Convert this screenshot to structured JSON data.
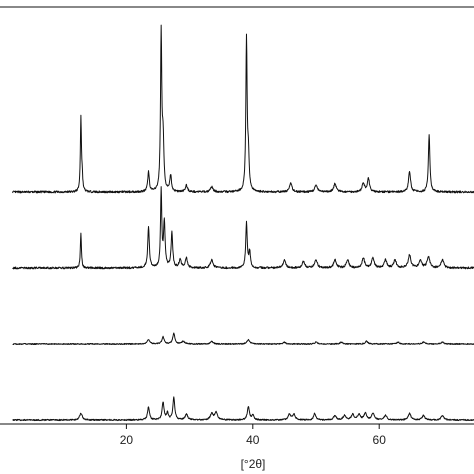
{
  "chart_data": {
    "type": "line",
    "title": "",
    "xlabel": "[°2θ]",
    "ylabel": "",
    "xlim": [
      0,
      75
    ],
    "x_ticks": [
      20,
      40,
      60
    ],
    "x_tick_labels": [
      "20",
      "40",
      "60"
    ],
    "grid": false,
    "legend": "none",
    "line_color": "#111111",
    "series": [
      {
        "background": 0.05,
        "peaks": [
          {
            "x": 12.8,
            "h": 0.45,
            "w": 0.1
          },
          {
            "x": 13.0,
            "h": 0.08,
            "w": 0.1
          },
          {
            "x": 23.5,
            "h": 0.12,
            "w": 0.15
          },
          {
            "x": 25.5,
            "h": 0.95,
            "w": 0.12
          },
          {
            "x": 25.8,
            "h": 0.3,
            "w": 0.15
          },
          {
            "x": 27.0,
            "h": 0.1,
            "w": 0.15
          },
          {
            "x": 29.5,
            "h": 0.04,
            "w": 0.2
          },
          {
            "x": 33.5,
            "h": 0.03,
            "w": 0.25
          },
          {
            "x": 39.0,
            "h": 0.92,
            "w": 0.12
          },
          {
            "x": 39.3,
            "h": 0.2,
            "w": 0.15
          },
          {
            "x": 46.0,
            "h": 0.05,
            "w": 0.25
          },
          {
            "x": 50.0,
            "h": 0.04,
            "w": 0.25
          },
          {
            "x": 53.0,
            "h": 0.05,
            "w": 0.25
          },
          {
            "x": 57.5,
            "h": 0.05,
            "w": 0.25
          },
          {
            "x": 58.3,
            "h": 0.08,
            "w": 0.2
          },
          {
            "x": 64.8,
            "h": 0.12,
            "w": 0.2
          },
          {
            "x": 67.9,
            "h": 0.35,
            "w": 0.14
          }
        ]
      },
      {
        "background": 0.06,
        "peaks": [
          {
            "x": 12.8,
            "h": 0.22,
            "w": 0.1
          },
          {
            "x": 23.5,
            "h": 0.25,
            "w": 0.15
          },
          {
            "x": 25.5,
            "h": 0.48,
            "w": 0.12
          },
          {
            "x": 26.0,
            "h": 0.28,
            "w": 0.15
          },
          {
            "x": 27.2,
            "h": 0.22,
            "w": 0.15
          },
          {
            "x": 28.5,
            "h": 0.05,
            "w": 0.2
          },
          {
            "x": 29.5,
            "h": 0.06,
            "w": 0.2
          },
          {
            "x": 33.5,
            "h": 0.05,
            "w": 0.25
          },
          {
            "x": 39.0,
            "h": 0.28,
            "w": 0.14
          },
          {
            "x": 39.5,
            "h": 0.1,
            "w": 0.15
          },
          {
            "x": 45.0,
            "h": 0.05,
            "w": 0.25
          },
          {
            "x": 48.0,
            "h": 0.04,
            "w": 0.25
          },
          {
            "x": 50.0,
            "h": 0.05,
            "w": 0.25
          },
          {
            "x": 53.0,
            "h": 0.05,
            "w": 0.25
          },
          {
            "x": 55.0,
            "h": 0.05,
            "w": 0.25
          },
          {
            "x": 57.5,
            "h": 0.06,
            "w": 0.25
          },
          {
            "x": 59.0,
            "h": 0.06,
            "w": 0.25
          },
          {
            "x": 61.0,
            "h": 0.05,
            "w": 0.25
          },
          {
            "x": 62.5,
            "h": 0.05,
            "w": 0.25
          },
          {
            "x": 64.8,
            "h": 0.08,
            "w": 0.25
          },
          {
            "x": 66.5,
            "h": 0.05,
            "w": 0.25
          },
          {
            "x": 67.8,
            "h": 0.07,
            "w": 0.25
          },
          {
            "x": 70.0,
            "h": 0.05,
            "w": 0.25
          }
        ]
      },
      {
        "background": 0.03,
        "peaks": [
          {
            "x": 23.5,
            "h": 0.05,
            "w": 0.25
          },
          {
            "x": 25.8,
            "h": 0.08,
            "w": 0.2
          },
          {
            "x": 27.5,
            "h": 0.12,
            "w": 0.2
          },
          {
            "x": 29.0,
            "h": 0.03,
            "w": 0.25
          },
          {
            "x": 33.5,
            "h": 0.03,
            "w": 0.25
          },
          {
            "x": 39.3,
            "h": 0.05,
            "w": 0.25
          },
          {
            "x": 45.0,
            "h": 0.02,
            "w": 0.25
          },
          {
            "x": 50.0,
            "h": 0.02,
            "w": 0.25
          },
          {
            "x": 54.0,
            "h": 0.02,
            "w": 0.25
          },
          {
            "x": 58.0,
            "h": 0.03,
            "w": 0.25
          },
          {
            "x": 63.0,
            "h": 0.02,
            "w": 0.25
          },
          {
            "x": 67.0,
            "h": 0.02,
            "w": 0.25
          },
          {
            "x": 70.0,
            "h": 0.02,
            "w": 0.25
          }
        ]
      },
      {
        "background": 0.03,
        "peaks": [
          {
            "x": 12.8,
            "h": 0.06,
            "w": 0.25
          },
          {
            "x": 23.5,
            "h": 0.12,
            "w": 0.18
          },
          {
            "x": 25.8,
            "h": 0.16,
            "w": 0.18
          },
          {
            "x": 26.5,
            "h": 0.06,
            "w": 0.18
          },
          {
            "x": 27.5,
            "h": 0.2,
            "w": 0.18
          },
          {
            "x": 29.5,
            "h": 0.05,
            "w": 0.25
          },
          {
            "x": 33.5,
            "h": 0.06,
            "w": 0.25
          },
          {
            "x": 34.2,
            "h": 0.07,
            "w": 0.25
          },
          {
            "x": 39.3,
            "h": 0.12,
            "w": 0.2
          },
          {
            "x": 40.0,
            "h": 0.04,
            "w": 0.2
          },
          {
            "x": 45.8,
            "h": 0.05,
            "w": 0.25
          },
          {
            "x": 46.5,
            "h": 0.05,
            "w": 0.25
          },
          {
            "x": 49.8,
            "h": 0.06,
            "w": 0.2
          },
          {
            "x": 53.0,
            "h": 0.04,
            "w": 0.25
          },
          {
            "x": 54.5,
            "h": 0.04,
            "w": 0.25
          },
          {
            "x": 55.8,
            "h": 0.05,
            "w": 0.25
          },
          {
            "x": 56.8,
            "h": 0.05,
            "w": 0.25
          },
          {
            "x": 57.8,
            "h": 0.06,
            "w": 0.25
          },
          {
            "x": 59.0,
            "h": 0.06,
            "w": 0.25
          },
          {
            "x": 61.0,
            "h": 0.04,
            "w": 0.25
          },
          {
            "x": 64.8,
            "h": 0.06,
            "w": 0.25
          },
          {
            "x": 67.0,
            "h": 0.04,
            "w": 0.25
          },
          {
            "x": 70.0,
            "h": 0.04,
            "w": 0.25
          }
        ]
      }
    ]
  }
}
